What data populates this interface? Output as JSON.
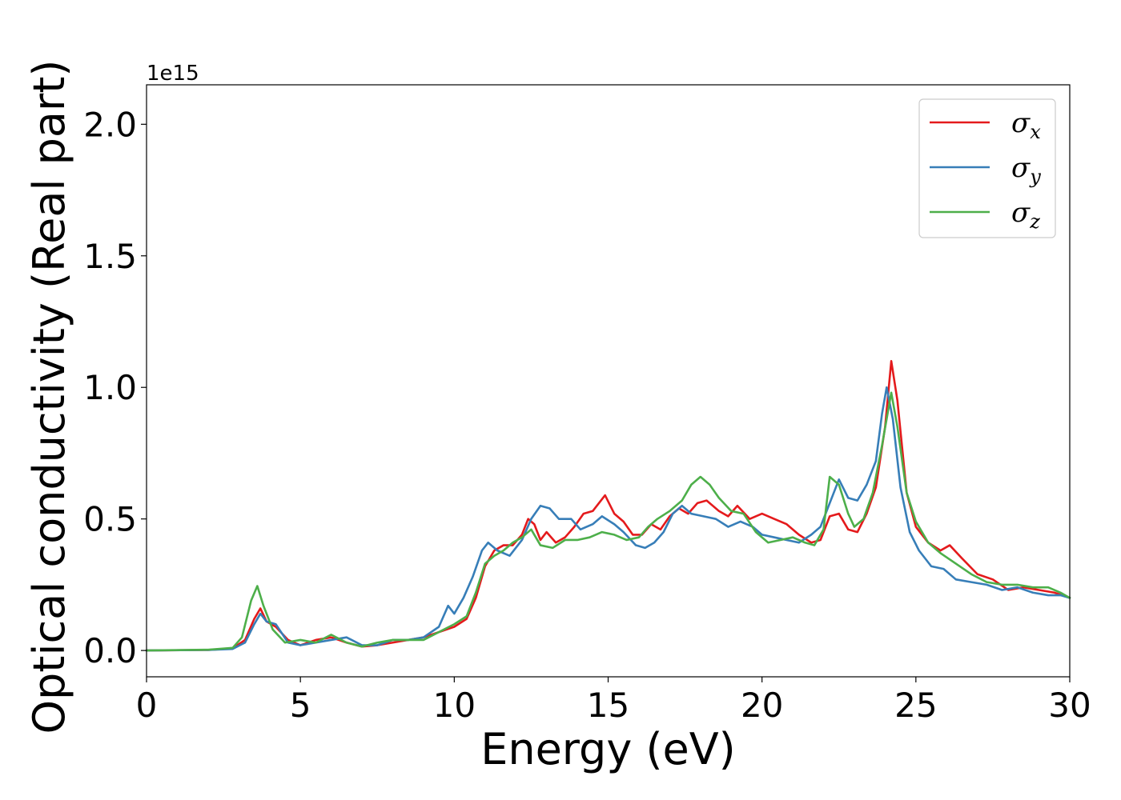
{
  "chart_data": {
    "type": "line",
    "xlabel": "Energy (eV)",
    "ylabel": "Optical conductivity (Real part)",
    "y_offset_text": "1e15",
    "xlim": [
      0,
      30
    ],
    "ylim": [
      -0.1,
      2.15
    ],
    "x_ticks": [
      0,
      5,
      10,
      15,
      20,
      25,
      30
    ],
    "x_tick_labels": [
      "0",
      "5",
      "10",
      "15",
      "20",
      "25",
      "30"
    ],
    "y_ticks": [
      0.0,
      0.5,
      1.0,
      1.5,
      2.0
    ],
    "y_tick_labels": [
      "0.0",
      "0.5",
      "1.0",
      "1.5",
      "2.0"
    ],
    "grid": false,
    "legend_position": "top-right",
    "series": [
      {
        "name": "σx",
        "legend_main": "σ",
        "legend_sub": "x",
        "color": "#e41a1c",
        "points": [
          [
            0,
            0
          ],
          [
            2,
            0.002
          ],
          [
            2.8,
            0.008
          ],
          [
            3.2,
            0.04
          ],
          [
            3.5,
            0.12
          ],
          [
            3.7,
            0.16
          ],
          [
            3.9,
            0.11
          ],
          [
            4.2,
            0.09
          ],
          [
            4.6,
            0.04
          ],
          [
            5.0,
            0.02
          ],
          [
            5.5,
            0.04
          ],
          [
            6.0,
            0.05
          ],
          [
            6.5,
            0.03
          ],
          [
            7.0,
            0.015
          ],
          [
            7.5,
            0.02
          ],
          [
            8.0,
            0.03
          ],
          [
            8.5,
            0.04
          ],
          [
            9.0,
            0.05
          ],
          [
            9.5,
            0.07
          ],
          [
            10.0,
            0.09
          ],
          [
            10.4,
            0.12
          ],
          [
            10.7,
            0.2
          ],
          [
            11.0,
            0.32
          ],
          [
            11.3,
            0.38
          ],
          [
            11.6,
            0.4
          ],
          [
            11.9,
            0.4
          ],
          [
            12.2,
            0.44
          ],
          [
            12.4,
            0.5
          ],
          [
            12.6,
            0.48
          ],
          [
            12.8,
            0.42
          ],
          [
            13.0,
            0.45
          ],
          [
            13.3,
            0.41
          ],
          [
            13.6,
            0.43
          ],
          [
            13.9,
            0.47
          ],
          [
            14.2,
            0.52
          ],
          [
            14.5,
            0.53
          ],
          [
            14.9,
            0.59
          ],
          [
            15.2,
            0.52
          ],
          [
            15.5,
            0.49
          ],
          [
            15.8,
            0.44
          ],
          [
            16.1,
            0.44
          ],
          [
            16.4,
            0.48
          ],
          [
            16.7,
            0.46
          ],
          [
            17.0,
            0.51
          ],
          [
            17.3,
            0.54
          ],
          [
            17.6,
            0.52
          ],
          [
            17.9,
            0.56
          ],
          [
            18.2,
            0.57
          ],
          [
            18.6,
            0.53
          ],
          [
            18.9,
            0.51
          ],
          [
            19.2,
            0.55
          ],
          [
            19.6,
            0.5
          ],
          [
            20.0,
            0.52
          ],
          [
            20.4,
            0.5
          ],
          [
            20.8,
            0.48
          ],
          [
            21.2,
            0.44
          ],
          [
            21.6,
            0.41
          ],
          [
            21.9,
            0.42
          ],
          [
            22.2,
            0.51
          ],
          [
            22.5,
            0.52
          ],
          [
            22.8,
            0.46
          ],
          [
            23.1,
            0.45
          ],
          [
            23.4,
            0.52
          ],
          [
            23.7,
            0.62
          ],
          [
            24.0,
            0.85
          ],
          [
            24.2,
            1.1
          ],
          [
            24.4,
            0.95
          ],
          [
            24.7,
            0.6
          ],
          [
            25.0,
            0.47
          ],
          [
            25.4,
            0.41
          ],
          [
            25.8,
            0.38
          ],
          [
            26.1,
            0.4
          ],
          [
            26.5,
            0.35
          ],
          [
            27.0,
            0.29
          ],
          [
            27.5,
            0.27
          ],
          [
            28.0,
            0.23
          ],
          [
            28.5,
            0.24
          ],
          [
            29.0,
            0.23
          ],
          [
            29.5,
            0.22
          ],
          [
            30.0,
            0.2
          ]
        ]
      },
      {
        "name": "σy",
        "legend_main": "σ",
        "legend_sub": "y",
        "color": "#377eb8",
        "points": [
          [
            0,
            0
          ],
          [
            2,
            0.002
          ],
          [
            2.8,
            0.006
          ],
          [
            3.2,
            0.03
          ],
          [
            3.5,
            0.1
          ],
          [
            3.7,
            0.14
          ],
          [
            3.9,
            0.11
          ],
          [
            4.2,
            0.1
          ],
          [
            4.6,
            0.03
          ],
          [
            5.0,
            0.02
          ],
          [
            5.5,
            0.03
          ],
          [
            6.0,
            0.04
          ],
          [
            6.5,
            0.05
          ],
          [
            7.0,
            0.02
          ],
          [
            7.5,
            0.02
          ],
          [
            8.0,
            0.04
          ],
          [
            8.5,
            0.04
          ],
          [
            9.0,
            0.05
          ],
          [
            9.5,
            0.09
          ],
          [
            9.8,
            0.17
          ],
          [
            10.0,
            0.14
          ],
          [
            10.3,
            0.2
          ],
          [
            10.6,
            0.28
          ],
          [
            10.9,
            0.38
          ],
          [
            11.1,
            0.41
          ],
          [
            11.4,
            0.38
          ],
          [
            11.8,
            0.36
          ],
          [
            12.2,
            0.42
          ],
          [
            12.5,
            0.5
          ],
          [
            12.8,
            0.55
          ],
          [
            13.1,
            0.54
          ],
          [
            13.4,
            0.5
          ],
          [
            13.8,
            0.5
          ],
          [
            14.1,
            0.46
          ],
          [
            14.5,
            0.48
          ],
          [
            14.8,
            0.51
          ],
          [
            15.2,
            0.48
          ],
          [
            15.5,
            0.45
          ],
          [
            15.9,
            0.4
          ],
          [
            16.2,
            0.39
          ],
          [
            16.5,
            0.41
          ],
          [
            16.8,
            0.45
          ],
          [
            17.1,
            0.52
          ],
          [
            17.4,
            0.55
          ],
          [
            17.7,
            0.52
          ],
          [
            18.1,
            0.51
          ],
          [
            18.5,
            0.5
          ],
          [
            18.9,
            0.47
          ],
          [
            19.3,
            0.49
          ],
          [
            19.7,
            0.47
          ],
          [
            20.0,
            0.44
          ],
          [
            20.4,
            0.43
          ],
          [
            20.8,
            0.42
          ],
          [
            21.2,
            0.41
          ],
          [
            21.6,
            0.44
          ],
          [
            21.9,
            0.47
          ],
          [
            22.2,
            0.56
          ],
          [
            22.5,
            0.65
          ],
          [
            22.8,
            0.58
          ],
          [
            23.1,
            0.57
          ],
          [
            23.4,
            0.63
          ],
          [
            23.7,
            0.72
          ],
          [
            23.9,
            0.9
          ],
          [
            24.05,
            1.0
          ],
          [
            24.25,
            0.88
          ],
          [
            24.5,
            0.62
          ],
          [
            24.8,
            0.45
          ],
          [
            25.1,
            0.38
          ],
          [
            25.5,
            0.32
          ],
          [
            25.9,
            0.31
          ],
          [
            26.3,
            0.27
          ],
          [
            26.8,
            0.26
          ],
          [
            27.3,
            0.25
          ],
          [
            27.8,
            0.23
          ],
          [
            28.3,
            0.24
          ],
          [
            28.8,
            0.22
          ],
          [
            29.3,
            0.21
          ],
          [
            29.7,
            0.21
          ],
          [
            30.0,
            0.2
          ]
        ]
      },
      {
        "name": "σz",
        "legend_main": "σ",
        "legend_sub": "z",
        "color": "#4daf4a",
        "points": [
          [
            0,
            0
          ],
          [
            2,
            0.003
          ],
          [
            2.8,
            0.01
          ],
          [
            3.1,
            0.05
          ],
          [
            3.4,
            0.19
          ],
          [
            3.6,
            0.245
          ],
          [
            3.8,
            0.17
          ],
          [
            4.1,
            0.08
          ],
          [
            4.5,
            0.03
          ],
          [
            5.0,
            0.04
          ],
          [
            5.5,
            0.03
          ],
          [
            6.0,
            0.06
          ],
          [
            6.5,
            0.03
          ],
          [
            7.0,
            0.015
          ],
          [
            7.5,
            0.03
          ],
          [
            8.0,
            0.04
          ],
          [
            8.5,
            0.04
          ],
          [
            9.0,
            0.04
          ],
          [
            9.5,
            0.07
          ],
          [
            10.0,
            0.1
          ],
          [
            10.4,
            0.13
          ],
          [
            10.7,
            0.22
          ],
          [
            11.0,
            0.33
          ],
          [
            11.3,
            0.36
          ],
          [
            11.6,
            0.38
          ],
          [
            11.9,
            0.41
          ],
          [
            12.2,
            0.43
          ],
          [
            12.5,
            0.46
          ],
          [
            12.8,
            0.4
          ],
          [
            13.2,
            0.39
          ],
          [
            13.6,
            0.42
          ],
          [
            14.0,
            0.42
          ],
          [
            14.4,
            0.43
          ],
          [
            14.8,
            0.45
          ],
          [
            15.2,
            0.44
          ],
          [
            15.6,
            0.42
          ],
          [
            16.0,
            0.43
          ],
          [
            16.3,
            0.47
          ],
          [
            16.6,
            0.5
          ],
          [
            17.0,
            0.53
          ],
          [
            17.4,
            0.57
          ],
          [
            17.7,
            0.63
          ],
          [
            18.0,
            0.66
          ],
          [
            18.3,
            0.63
          ],
          [
            18.6,
            0.58
          ],
          [
            19.0,
            0.53
          ],
          [
            19.4,
            0.52
          ],
          [
            19.8,
            0.45
          ],
          [
            20.2,
            0.41
          ],
          [
            20.6,
            0.42
          ],
          [
            21.0,
            0.43
          ],
          [
            21.4,
            0.41
          ],
          [
            21.7,
            0.4
          ],
          [
            22.0,
            0.46
          ],
          [
            22.2,
            0.66
          ],
          [
            22.5,
            0.63
          ],
          [
            22.8,
            0.52
          ],
          [
            23.0,
            0.47
          ],
          [
            23.3,
            0.5
          ],
          [
            23.6,
            0.6
          ],
          [
            23.9,
            0.78
          ],
          [
            24.2,
            0.98
          ],
          [
            24.4,
            0.85
          ],
          [
            24.7,
            0.6
          ],
          [
            25.0,
            0.49
          ],
          [
            25.4,
            0.41
          ],
          [
            25.8,
            0.37
          ],
          [
            26.3,
            0.33
          ],
          [
            26.8,
            0.29
          ],
          [
            27.3,
            0.26
          ],
          [
            27.8,
            0.25
          ],
          [
            28.3,
            0.25
          ],
          [
            28.8,
            0.24
          ],
          [
            29.3,
            0.24
          ],
          [
            29.7,
            0.22
          ],
          [
            30.0,
            0.2
          ]
        ]
      }
    ]
  }
}
